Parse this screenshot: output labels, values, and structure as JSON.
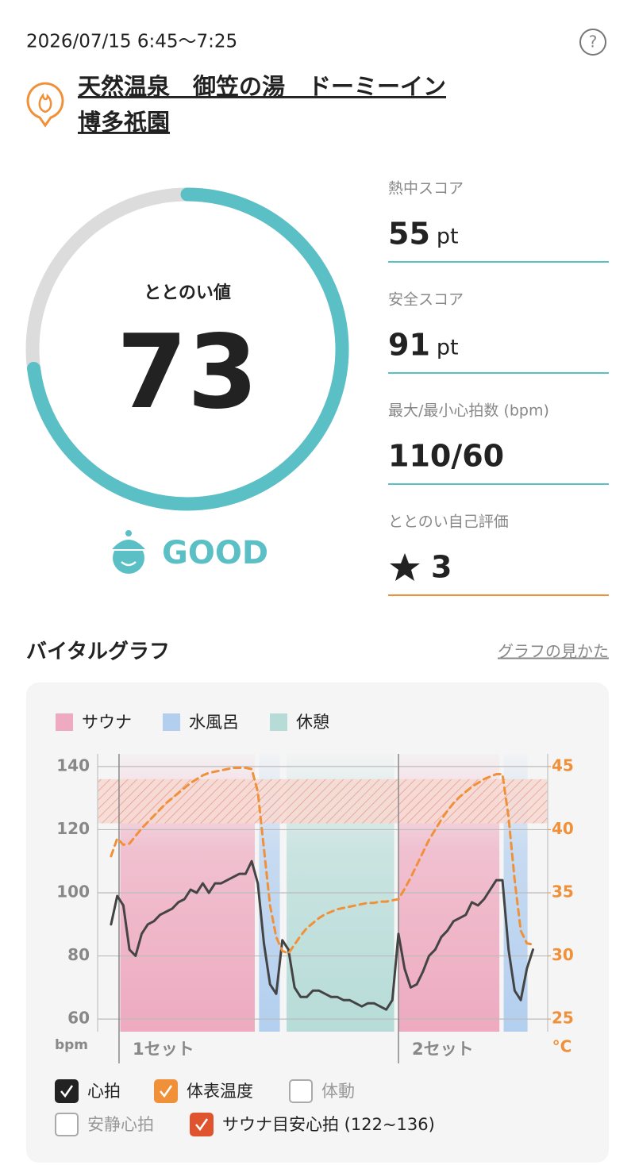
{
  "header": {
    "datetime": "2026/07/15 6:45〜7:25",
    "help": "?",
    "facility": [
      "天然温泉　御笠の湯　ドーミーイン",
      "博多祇園"
    ]
  },
  "score": {
    "label": "ととのい値",
    "value": 73,
    "rating": "GOOD"
  },
  "stats": [
    {
      "label": "熱中スコア",
      "value": 55,
      "unit": "pt"
    },
    {
      "label": "安全スコア",
      "value": 91,
      "unit": "pt"
    },
    {
      "label": "最大/最小心拍数 (bpm)",
      "value": "110/60"
    },
    {
      "label": "ととのい自己評価",
      "value": 3
    }
  ],
  "section": {
    "title": "バイタルグラフ",
    "link": "グラフの見かた"
  },
  "chart_data": {
    "type": "line",
    "phases": [
      {
        "name": "サウナ",
        "color": "#eeaac0"
      },
      {
        "name": "水風呂",
        "color": "#b3cfef"
      },
      {
        "name": "休憩",
        "color": "#b7dcd8"
      }
    ],
    "bands": [
      {
        "phase": 0,
        "from": 1.5,
        "to": 23.5
      },
      {
        "phase": 1,
        "from": 24.2,
        "to": 27.6
      },
      {
        "phase": 2,
        "from": 28.7,
        "to": 46.3
      },
      {
        "phase": 0,
        "from": 47,
        "to": 63.5
      },
      {
        "phase": 1,
        "from": 64.2,
        "to": 68.1
      }
    ],
    "sets": [
      {
        "label": "1セット",
        "start": 1.3
      },
      {
        "label": "2セット",
        "start": 47
      }
    ],
    "xlim": [
      -2.2,
      71.4
    ],
    "ylim": [
      56,
      144
    ],
    "yticks": [
      60,
      80,
      100,
      120,
      140
    ],
    "y_unit": "bpm",
    "y2lim": [
      24,
      46
    ],
    "y2ticks": [
      25,
      30,
      35,
      40,
      45
    ],
    "y2_unit": "°C",
    "grid": true,
    "target_range": [
      122,
      136
    ],
    "target_color": "#e26a4a",
    "series": [
      {
        "color": "#444444",
        "dashed": false,
        "axis": "y",
        "values": [
          90,
          99,
          96,
          82,
          80,
          87,
          90,
          91,
          93,
          94,
          95,
          97,
          98,
          101,
          100,
          103,
          100,
          103,
          103,
          104,
          105,
          106,
          106,
          110,
          103,
          84,
          71,
          68,
          85,
          82,
          70,
          67,
          67,
          69,
          69,
          68,
          67,
          67,
          66,
          66,
          65,
          64,
          65,
          65,
          64,
          63,
          66,
          87,
          76,
          70,
          71,
          75,
          80,
          82,
          86,
          88,
          91,
          92,
          93,
          97,
          96,
          98,
          101,
          104,
          104,
          82,
          69,
          66,
          76,
          82
        ]
      },
      {
        "color": "#f0913a",
        "dashed": true,
        "axis": "y2",
        "values": [
          37.9,
          39.3,
          38.8,
          38.9,
          39.5,
          40.1,
          40.6,
          41.1,
          41.6,
          42.1,
          42.5,
          42.9,
          43.3,
          43.7,
          44.0,
          44.3,
          44.5,
          44.6,
          44.7,
          44.8,
          44.9,
          44.9,
          44.9,
          44.8,
          43.0,
          38.5,
          34.0,
          31.5,
          30.4,
          30.2,
          30.9,
          31.6,
          32.2,
          32.6,
          33.0,
          33.3,
          33.5,
          33.7,
          33.8,
          33.9,
          34.0,
          34.1,
          34.2,
          34.2,
          34.3,
          34.3,
          34.4,
          34.5,
          35.3,
          36.2,
          37.2,
          38.2,
          39.2,
          40.0,
          40.8,
          41.5,
          42.1,
          42.6,
          43.0,
          43.4,
          43.7,
          44.0,
          44.2,
          44.4,
          44.4,
          41.0,
          36.0,
          32.0,
          31.0,
          30.9
        ]
      }
    ],
    "toggles": [
      {
        "label": "心拍",
        "checked": true,
        "color": "#222222"
      },
      {
        "label": "体表温度",
        "checked": true,
        "color": "#f0913a"
      },
      {
        "label": "体動",
        "checked": false
      },
      {
        "label": "安静心拍",
        "checked": false
      },
      {
        "label": "サウナ目安心拍 (122~136)",
        "checked": true,
        "color": "#e0532f"
      }
    ]
  }
}
